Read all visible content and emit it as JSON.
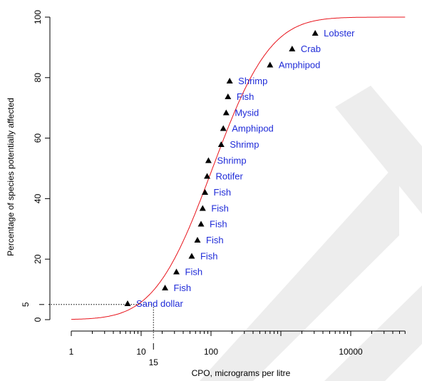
{
  "chart_data": {
    "type": "scatter",
    "title": "",
    "xlabel": "CPO, micrograms per litre",
    "ylabel": "Percentage of species potentially affected",
    "x_scale": "log10",
    "xlim": [
      1,
      60000
    ],
    "ylim": [
      0,
      100
    ],
    "x_major_ticks": [
      1,
      10,
      100,
      10000
    ],
    "x_major_tick_labels": [
      "1",
      "10",
      "100",
      "10000"
    ],
    "y_ticks": [
      0,
      20,
      40,
      60,
      80,
      100
    ],
    "y_tick_labels": [
      "0",
      "20",
      "40",
      "60",
      "80",
      "100"
    ],
    "reference": {
      "x": 15,
      "y": 5,
      "x_label": "15",
      "y_label": "5",
      "line_style": "dotted"
    },
    "grid": false,
    "legend": "none",
    "colors": {
      "curve": "#e8141c",
      "points": "#000000",
      "labels": "#1f2bd8",
      "watermark": "#ededed"
    },
    "curve": {
      "model": "log-normal cumulative distribution",
      "median": 105,
      "log10_sd": 0.65
    },
    "points": [
      {
        "x": 6.4,
        "y": 5.3,
        "label": "Sand dollar"
      },
      {
        "x": 22,
        "y": 10.5,
        "label": "Fish"
      },
      {
        "x": 32,
        "y": 15.8,
        "label": "Fish"
      },
      {
        "x": 53,
        "y": 21,
        "label": "Fish"
      },
      {
        "x": 64,
        "y": 26.3,
        "label": "Fish"
      },
      {
        "x": 72,
        "y": 31.6,
        "label": "Fish"
      },
      {
        "x": 76,
        "y": 36.8,
        "label": "Fish"
      },
      {
        "x": 82,
        "y": 42.1,
        "label": "Fish"
      },
      {
        "x": 88,
        "y": 47.4,
        "label": "Rotifer"
      },
      {
        "x": 92,
        "y": 52.6,
        "label": "Shrimp"
      },
      {
        "x": 140,
        "y": 57.9,
        "label": "Shrimp"
      },
      {
        "x": 150,
        "y": 63.2,
        "label": "Amphipod"
      },
      {
        "x": 165,
        "y": 68.4,
        "label": "Mysid"
      },
      {
        "x": 175,
        "y": 73.7,
        "label": "Fish"
      },
      {
        "x": 185,
        "y": 78.9,
        "label": "Shrimp"
      },
      {
        "x": 700,
        "y": 84.2,
        "label": "Amphipod"
      },
      {
        "x": 1450,
        "y": 89.5,
        "label": "Crab"
      },
      {
        "x": 3100,
        "y": 94.7,
        "label": "Lobster"
      }
    ]
  }
}
